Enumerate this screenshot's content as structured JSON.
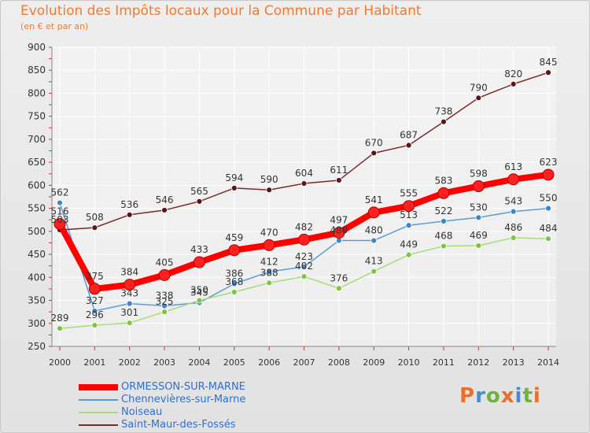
{
  "title": "Evolution des Impôts locaux pour la Commune par Habitant",
  "subtitle": "(en € et par an)",
  "logo": {
    "text": "Proxiti",
    "colors": [
      "#e8702a",
      "#4a8bd0",
      "#6fb23a",
      "#e8702a",
      "#4a8bd0",
      "#6fb23a",
      "#e8702a"
    ]
  },
  "chart_data": {
    "type": "line",
    "title": "Evolution des Impôts locaux pour la Commune par Habitant",
    "subtitle": "(en € et par an)",
    "xlabel": "",
    "ylabel": "",
    "x": [
      "2000",
      "2001",
      "2002",
      "2003",
      "2004",
      "2005",
      "2006",
      "2007",
      "2008",
      "2009",
      "2010",
      "2011",
      "2012",
      "2013",
      "2014"
    ],
    "ylim": [
      250,
      900
    ],
    "yticks": [
      250,
      300,
      350,
      400,
      450,
      500,
      550,
      600,
      650,
      700,
      750,
      800,
      850,
      900
    ],
    "grid": true,
    "legend_position": "bottom-left",
    "series": [
      {
        "name": "ORMESSON-SUR-MARNE",
        "color": "#ff0000",
        "point_color": "#ff2020",
        "emphasis": true,
        "values": [
          516,
          375,
          384,
          405,
          433,
          459,
          470,
          482,
          497,
          541,
          555,
          583,
          598,
          613,
          623
        ],
        "labels": [
          "516",
          "375",
          "384",
          "405",
          "433",
          "459",
          "470",
          "482",
          "497",
          "541",
          "555",
          "583",
          "598",
          "613",
          "623"
        ]
      },
      {
        "name": "Chennevières-sur-Marne",
        "color": "#5b9bd5",
        "point_color": "#3b86c9",
        "values": [
          562,
          327,
          343,
          338,
          345,
          386,
          412,
          423,
          480,
          480,
          513,
          522,
          530,
          543,
          550
        ],
        "labels": [
          "562",
          "327",
          "343",
          "338",
          "345",
          "386",
          "412",
          "423",
          "480",
          "480",
          "513",
          "522",
          "530",
          "543",
          "550"
        ]
      },
      {
        "name": "Noiseau",
        "color": "#a6dc78",
        "point_color": "#7cc544",
        "values": [
          289,
          296,
          301,
          325,
          350,
          368,
          388,
          402,
          376,
          413,
          449,
          468,
          469,
          486,
          484
        ],
        "labels": [
          "289",
          "296",
          "301",
          "325",
          "350",
          "368",
          "388",
          "402",
          "376",
          "413",
          "449",
          "468",
          "469",
          "486",
          "484"
        ]
      },
      {
        "name": "Saint-Maur-des-Fossés",
        "color": "#7a2a2a",
        "point_color": "#5a1616",
        "values": [
          503,
          508,
          536,
          546,
          565,
          594,
          590,
          604,
          611,
          670,
          687,
          738,
          790,
          820,
          845
        ],
        "labels": [
          "503",
          "508",
          "536",
          "546",
          "565",
          "594",
          "590",
          "604",
          "611",
          "670",
          "687",
          "738",
          "790",
          "820",
          "845"
        ]
      }
    ]
  }
}
